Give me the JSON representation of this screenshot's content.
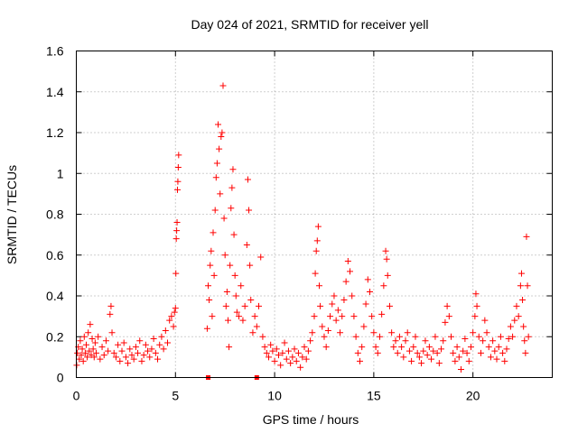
{
  "chart_data": {
    "type": "scatter",
    "title": "Day 024 of 2021, SRMTID for receiver yell",
    "xlabel": "GPS time / hours",
    "ylabel": "SRMTID / TECUs",
    "xlim": [
      0,
      24
    ],
    "ylim": [
      0,
      1.6
    ],
    "xticks": [
      "0",
      "5",
      "10",
      "15",
      "20"
    ],
    "yticks": [
      "0",
      "0.2",
      "0.4",
      "0.6",
      "0.8",
      "1",
      "1.2",
      "1.4",
      "1.6"
    ],
    "grid": true,
    "marker": "+",
    "color": "#ff0000",
    "series": [
      {
        "name": "SRMTID",
        "points": [
          [
            0.02,
            0.06
          ],
          [
            0.05,
            0.12
          ],
          [
            0.1,
            0.15
          ],
          [
            0.15,
            0.09
          ],
          [
            0.2,
            0.18
          ],
          [
            0.25,
            0.11
          ],
          [
            0.3,
            0.14
          ],
          [
            0.35,
            0.08
          ],
          [
            0.4,
            0.2
          ],
          [
            0.45,
            0.12
          ],
          [
            0.5,
            0.16
          ],
          [
            0.55,
            0.1
          ],
          [
            0.6,
            0.22
          ],
          [
            0.65,
            0.13
          ],
          [
            0.7,
            0.26
          ],
          [
            0.75,
            0.11
          ],
          [
            0.8,
            0.19
          ],
          [
            0.85,
            0.14
          ],
          [
            0.9,
            0.1
          ],
          [
            0.95,
            0.17
          ],
          [
            1.0,
            0.12
          ],
          [
            1.1,
            0.2
          ],
          [
            1.2,
            0.09
          ],
          [
            1.3,
            0.15
          ],
          [
            1.4,
            0.11
          ],
          [
            1.5,
            0.18
          ],
          [
            1.6,
            0.13
          ],
          [
            1.7,
            0.31
          ],
          [
            1.75,
            0.35
          ],
          [
            1.8,
            0.22
          ],
          [
            1.9,
            0.12
          ],
          [
            2.0,
            0.1
          ],
          [
            2.1,
            0.16
          ],
          [
            2.2,
            0.08
          ],
          [
            2.3,
            0.13
          ],
          [
            2.4,
            0.17
          ],
          [
            2.5,
            0.1
          ],
          [
            2.6,
            0.07
          ],
          [
            2.7,
            0.14
          ],
          [
            2.8,
            0.11
          ],
          [
            2.9,
            0.09
          ],
          [
            3.0,
            0.15
          ],
          [
            3.1,
            0.12
          ],
          [
            3.2,
            0.18
          ],
          [
            3.3,
            0.08
          ],
          [
            3.4,
            0.11
          ],
          [
            3.5,
            0.16
          ],
          [
            3.6,
            0.13
          ],
          [
            3.7,
            0.1
          ],
          [
            3.8,
            0.14
          ],
          [
            3.9,
            0.19
          ],
          [
            4.0,
            0.12
          ],
          [
            4.1,
            0.09
          ],
          [
            4.2,
            0.16
          ],
          [
            4.3,
            0.2
          ],
          [
            4.4,
            0.14
          ],
          [
            4.5,
            0.23
          ],
          [
            4.6,
            0.17
          ],
          [
            4.7,
            0.28
          ],
          [
            4.8,
            0.3
          ],
          [
            4.9,
            0.25
          ],
          [
            4.95,
            0.32
          ],
          [
            5.0,
            0.34
          ],
          [
            5.02,
            0.51
          ],
          [
            5.04,
            0.68
          ],
          [
            5.06,
            0.72
          ],
          [
            5.08,
            0.76
          ],
          [
            5.1,
            0.92
          ],
          [
            5.12,
            0.96
          ],
          [
            5.14,
            1.03
          ],
          [
            5.16,
            1.09
          ],
          [
            6.6,
            0.24
          ],
          [
            6.65,
            0.45
          ],
          [
            6.7,
            0.38
          ],
          [
            6.75,
            0.55
          ],
          [
            6.8,
            0.62
          ],
          [
            6.85,
            0.3
          ],
          [
            6.9,
            0.71
          ],
          [
            6.95,
            0.5
          ],
          [
            7.0,
            0.82
          ],
          [
            7.05,
            0.98
          ],
          [
            7.1,
            1.05
          ],
          [
            7.15,
            1.24
          ],
          [
            7.2,
            1.12
          ],
          [
            7.25,
            0.9
          ],
          [
            7.3,
            1.18
          ],
          [
            7.35,
            1.2
          ],
          [
            7.4,
            1.43
          ],
          [
            7.45,
            0.78
          ],
          [
            7.5,
            0.6
          ],
          [
            7.55,
            0.35
          ],
          [
            7.6,
            0.42
          ],
          [
            7.65,
            0.28
          ],
          [
            7.7,
            0.15
          ],
          [
            7.75,
            0.55
          ],
          [
            7.8,
            0.83
          ],
          [
            7.85,
            0.93
          ],
          [
            7.9,
            1.02
          ],
          [
            7.95,
            0.7
          ],
          [
            8.0,
            0.5
          ],
          [
            8.05,
            0.4
          ],
          [
            8.1,
            0.32
          ],
          [
            8.2,
            0.3
          ],
          [
            8.3,
            0.45
          ],
          [
            8.4,
            0.28
          ],
          [
            8.5,
            0.35
          ],
          [
            8.6,
            0.65
          ],
          [
            8.65,
            0.97
          ],
          [
            8.7,
            0.82
          ],
          [
            8.75,
            0.55
          ],
          [
            8.8,
            0.38
          ],
          [
            8.9,
            0.22
          ],
          [
            9.0,
            0.3
          ],
          [
            9.1,
            0.25
          ],
          [
            9.2,
            0.35
          ],
          [
            9.3,
            0.59
          ],
          [
            9.4,
            0.2
          ],
          [
            9.5,
            0.15
          ],
          [
            9.6,
            0.12
          ],
          [
            9.7,
            0.1
          ],
          [
            9.8,
            0.16
          ],
          [
            9.9,
            0.13
          ],
          [
            10.0,
            0.08
          ],
          [
            10.1,
            0.14
          ],
          [
            10.2,
            0.11
          ],
          [
            10.3,
            0.06
          ],
          [
            10.4,
            0.12
          ],
          [
            10.5,
            0.17
          ],
          [
            10.6,
            0.09
          ],
          [
            10.7,
            0.13
          ],
          [
            10.8,
            0.07
          ],
          [
            10.9,
            0.1
          ],
          [
            11.0,
            0.14
          ],
          [
            11.1,
            0.08
          ],
          [
            11.2,
            0.12
          ],
          [
            11.3,
            0.05
          ],
          [
            11.4,
            0.1
          ],
          [
            11.5,
            0.15
          ],
          [
            11.6,
            0.09
          ],
          [
            11.7,
            0.13
          ],
          [
            11.8,
            0.18
          ],
          [
            11.9,
            0.22
          ],
          [
            12.0,
            0.3
          ],
          [
            12.05,
            0.51
          ],
          [
            12.1,
            0.62
          ],
          [
            12.15,
            0.67
          ],
          [
            12.2,
            0.74
          ],
          [
            12.25,
            0.45
          ],
          [
            12.3,
            0.35
          ],
          [
            12.4,
            0.25
          ],
          [
            12.5,
            0.2
          ],
          [
            12.6,
            0.15
          ],
          [
            12.7,
            0.23
          ],
          [
            12.8,
            0.3
          ],
          [
            12.9,
            0.36
          ],
          [
            13.0,
            0.4
          ],
          [
            13.1,
            0.28
          ],
          [
            13.2,
            0.33
          ],
          [
            13.3,
            0.22
          ],
          [
            13.4,
            0.3
          ],
          [
            13.5,
            0.38
          ],
          [
            13.6,
            0.47
          ],
          [
            13.7,
            0.57
          ],
          [
            13.8,
            0.52
          ],
          [
            13.9,
            0.4
          ],
          [
            14.0,
            0.3
          ],
          [
            14.1,
            0.2
          ],
          [
            14.2,
            0.12
          ],
          [
            14.3,
            0.08
          ],
          [
            14.4,
            0.15
          ],
          [
            14.5,
            0.25
          ],
          [
            14.6,
            0.36
          ],
          [
            14.7,
            0.48
          ],
          [
            14.8,
            0.42
          ],
          [
            14.9,
            0.3
          ],
          [
            15.0,
            0.22
          ],
          [
            15.1,
            0.15
          ],
          [
            15.2,
            0.12
          ],
          [
            15.3,
            0.2
          ],
          [
            15.4,
            0.31
          ],
          [
            15.5,
            0.45
          ],
          [
            15.6,
            0.62
          ],
          [
            15.65,
            0.58
          ],
          [
            15.7,
            0.5
          ],
          [
            15.8,
            0.35
          ],
          [
            15.9,
            0.22
          ],
          [
            16.0,
            0.15
          ],
          [
            16.1,
            0.18
          ],
          [
            16.2,
            0.12
          ],
          [
            16.3,
            0.2
          ],
          [
            16.4,
            0.15
          ],
          [
            16.5,
            0.1
          ],
          [
            16.6,
            0.18
          ],
          [
            16.7,
            0.22
          ],
          [
            16.8,
            0.13
          ],
          [
            16.9,
            0.08
          ],
          [
            17.0,
            0.15
          ],
          [
            17.1,
            0.2
          ],
          [
            17.2,
            0.12
          ],
          [
            17.3,
            0.1
          ],
          [
            17.4,
            0.07
          ],
          [
            17.5,
            0.13
          ],
          [
            17.6,
            0.18
          ],
          [
            17.7,
            0.11
          ],
          [
            17.8,
            0.15
          ],
          [
            17.9,
            0.09
          ],
          [
            18.0,
            0.13
          ],
          [
            18.1,
            0.2
          ],
          [
            18.2,
            0.12
          ],
          [
            18.3,
            0.07
          ],
          [
            18.4,
            0.14
          ],
          [
            18.5,
            0.18
          ],
          [
            18.6,
            0.27
          ],
          [
            18.7,
            0.35
          ],
          [
            18.8,
            0.3
          ],
          [
            18.9,
            0.2
          ],
          [
            19.0,
            0.12
          ],
          [
            19.1,
            0.08
          ],
          [
            19.2,
            0.15
          ],
          [
            19.3,
            0.1
          ],
          [
            19.4,
            0.04
          ],
          [
            19.5,
            0.13
          ],
          [
            19.6,
            0.19
          ],
          [
            19.7,
            0.12
          ],
          [
            19.8,
            0.08
          ],
          [
            19.9,
            0.15
          ],
          [
            20.0,
            0.22
          ],
          [
            20.1,
            0.3
          ],
          [
            20.15,
            0.41
          ],
          [
            20.2,
            0.35
          ],
          [
            20.3,
            0.2
          ],
          [
            20.4,
            0.12
          ],
          [
            20.5,
            0.18
          ],
          [
            20.6,
            0.28
          ],
          [
            20.7,
            0.22
          ],
          [
            20.8,
            0.15
          ],
          [
            20.9,
            0.1
          ],
          [
            21.0,
            0.18
          ],
          [
            21.1,
            0.13
          ],
          [
            21.2,
            0.09
          ],
          [
            21.3,
            0.15
          ],
          [
            21.4,
            0.2
          ],
          [
            21.5,
            0.12
          ],
          [
            21.6,
            0.08
          ],
          [
            21.7,
            0.14
          ],
          [
            21.8,
            0.19
          ],
          [
            21.9,
            0.25
          ],
          [
            22.0,
            0.2
          ],
          [
            22.1,
            0.28
          ],
          [
            22.2,
            0.35
          ],
          [
            22.3,
            0.3
          ],
          [
            22.4,
            0.45
          ],
          [
            22.45,
            0.51
          ],
          [
            22.5,
            0.38
          ],
          [
            22.55,
            0.25
          ],
          [
            22.6,
            0.18
          ],
          [
            22.65,
            0.12
          ],
          [
            22.7,
            0.69
          ],
          [
            22.75,
            0.45
          ],
          [
            22.8,
            0.2
          ]
        ]
      }
    ],
    "axis_markers": [
      {
        "x": 6.65,
        "y": 0
      },
      {
        "x": 9.1,
        "y": 0
      }
    ]
  }
}
